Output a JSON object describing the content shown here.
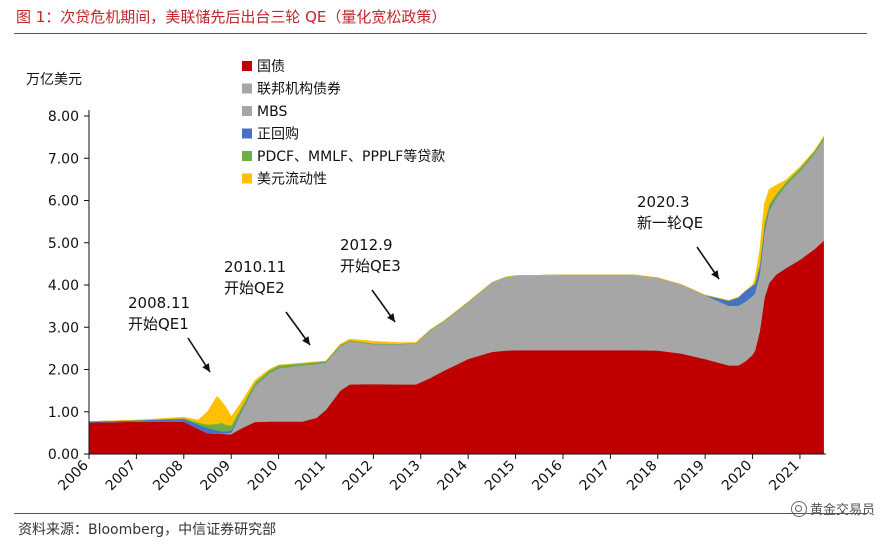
{
  "figure": {
    "title": "图 1：次贷危机期间，美联储先后出台三轮 QE（量化宽松政策）",
    "source": "资料来源：Bloomberg，中信证券研究部",
    "watermark": "黄金交易员",
    "watermark_icon": "wechat-channel-icon"
  },
  "chart_data": {
    "type": "area",
    "stacked": true,
    "ylabel": "万亿美元",
    "ylim": [
      0,
      8
    ],
    "yticks": [
      "0.00",
      "1.00",
      "2.00",
      "3.00",
      "4.00",
      "5.00",
      "6.00",
      "7.00",
      "8.00"
    ],
    "xticks": [
      "2006",
      "2007",
      "2008",
      "2009",
      "2010",
      "2011",
      "2012",
      "2013",
      "2014",
      "2015",
      "2016",
      "2017",
      "2018",
      "2019",
      "2020",
      "2021"
    ],
    "xlim": [
      2006.0,
      2021.55
    ],
    "grid": false,
    "legend_position": "top-left",
    "x": [
      2006.0,
      2007.0,
      2008.0,
      2008.3,
      2008.5,
      2008.7,
      2008.8,
      2008.9,
      2009.0,
      2009.2,
      2009.5,
      2009.8,
      2010.0,
      2010.5,
      2010.8,
      2011.0,
      2011.3,
      2011.5,
      2012.0,
      2012.5,
      2012.9,
      2013.2,
      2013.5,
      2014.0,
      2014.5,
      2014.8,
      2015.0,
      2016.0,
      2017.0,
      2017.5,
      2018.0,
      2018.5,
      2019.0,
      2019.5,
      2019.7,
      2019.85,
      2020.0,
      2020.05,
      2020.15,
      2020.25,
      2020.35,
      2020.5,
      2020.7,
      2021.0,
      2021.3,
      2021.5
    ],
    "series": [
      {
        "name": "国债",
        "color": "#c00000",
        "values": [
          0.75,
          0.77,
          0.77,
          0.6,
          0.5,
          0.48,
          0.48,
          0.47,
          0.47,
          0.6,
          0.76,
          0.77,
          0.77,
          0.77,
          0.86,
          1.05,
          1.5,
          1.65,
          1.66,
          1.65,
          1.65,
          1.8,
          1.98,
          2.25,
          2.42,
          2.45,
          2.46,
          2.46,
          2.46,
          2.46,
          2.45,
          2.38,
          2.25,
          2.1,
          2.1,
          2.2,
          2.35,
          2.45,
          2.9,
          3.7,
          4.05,
          4.25,
          4.4,
          4.6,
          4.85,
          5.05
        ]
      },
      {
        "name": "联邦机构债券",
        "color": "#a6a6a6",
        "values": [
          0,
          0,
          0,
          0,
          0,
          0,
          0.01,
          0.02,
          0.03,
          0.06,
          0.1,
          0.14,
          0.16,
          0.15,
          0.14,
          0.13,
          0.11,
          0.1,
          0.09,
          0.08,
          0.07,
          0.06,
          0.05,
          0.04,
          0.04,
          0.04,
          0.03,
          0.03,
          0.02,
          0.02,
          0.02,
          0.01,
          0.01,
          0.01,
          0.01,
          0.01,
          0.01,
          0.01,
          0.01,
          0.01,
          0.01,
          0.01,
          0,
          0,
          0,
          0
        ]
      },
      {
        "name": "MBS",
        "color": "#a6a6a6",
        "values": [
          0,
          0,
          0,
          0,
          0,
          0,
          0,
          0,
          0.01,
          0.3,
          0.75,
          1.0,
          1.1,
          1.18,
          1.13,
          0.98,
          0.95,
          0.92,
          0.85,
          0.87,
          0.9,
          1.07,
          1.12,
          1.3,
          1.6,
          1.7,
          1.73,
          1.75,
          1.76,
          1.76,
          1.7,
          1.62,
          1.5,
          1.4,
          1.4,
          1.4,
          1.38,
          1.35,
          1.35,
          1.55,
          1.72,
          1.8,
          1.95,
          2.1,
          2.25,
          2.4
        ]
      },
      {
        "name": "正回购",
        "color": "#4472c4",
        "values": [
          0.02,
          0.03,
          0.06,
          0.1,
          0.12,
          0.08,
          0.05,
          0.05,
          0.05,
          0.02,
          0,
          0,
          0,
          0,
          0,
          0,
          0,
          0,
          0,
          0,
          0,
          0,
          0,
          0,
          0,
          0,
          0,
          0,
          0,
          0,
          0,
          0,
          0,
          0.12,
          0.2,
          0.25,
          0.25,
          0.2,
          0.15,
          0.08,
          0.03,
          0.01,
          0,
          0,
          0,
          0
        ]
      },
      {
        "name": "PDCF、MMLF、PPPLF等贷款",
        "color": "#70ad47",
        "values": [
          0,
          0,
          0.02,
          0.05,
          0.08,
          0.15,
          0.2,
          0.15,
          0.12,
          0.1,
          0.08,
          0.07,
          0.07,
          0.05,
          0.05,
          0.04,
          0.03,
          0.02,
          0.02,
          0.01,
          0.01,
          0.01,
          0.01,
          0.01,
          0,
          0,
          0,
          0,
          0,
          0,
          0,
          0,
          0,
          0,
          0,
          0,
          0,
          0.03,
          0.08,
          0.12,
          0.1,
          0.09,
          0.08,
          0.07,
          0.06,
          0.05
        ]
      },
      {
        "name": "美元流动性",
        "color": "#ffc000",
        "values": [
          0,
          0,
          0.02,
          0.05,
          0.3,
          0.65,
          0.5,
          0.4,
          0.2,
          0.12,
          0.05,
          0.02,
          0.01,
          0,
          0,
          0,
          0.01,
          0.03,
          0.05,
          0.03,
          0.01,
          0,
          0,
          0,
          0,
          0,
          0,
          0,
          0,
          0,
          0,
          0,
          0,
          0,
          0,
          0,
          0.01,
          0.1,
          0.3,
          0.45,
          0.35,
          0.2,
          0.05,
          0.02,
          0.01,
          0.01
        ]
      }
    ],
    "annotations": [
      {
        "lines": [
          "2008.11",
          "开始QE1"
        ],
        "x": 2008.85,
        "y": 1.6
      },
      {
        "lines": [
          "2010.11",
          "开始QE2"
        ],
        "x": 2010.85,
        "y": 2.45
      },
      {
        "lines": [
          "2012.9",
          "开始QE3"
        ],
        "x": 2012.75,
        "y": 2.95
      },
      {
        "lines": [
          "2020.3",
          "新一轮QE"
        ],
        "x": 2019.75,
        "y": 4.15
      }
    ]
  }
}
